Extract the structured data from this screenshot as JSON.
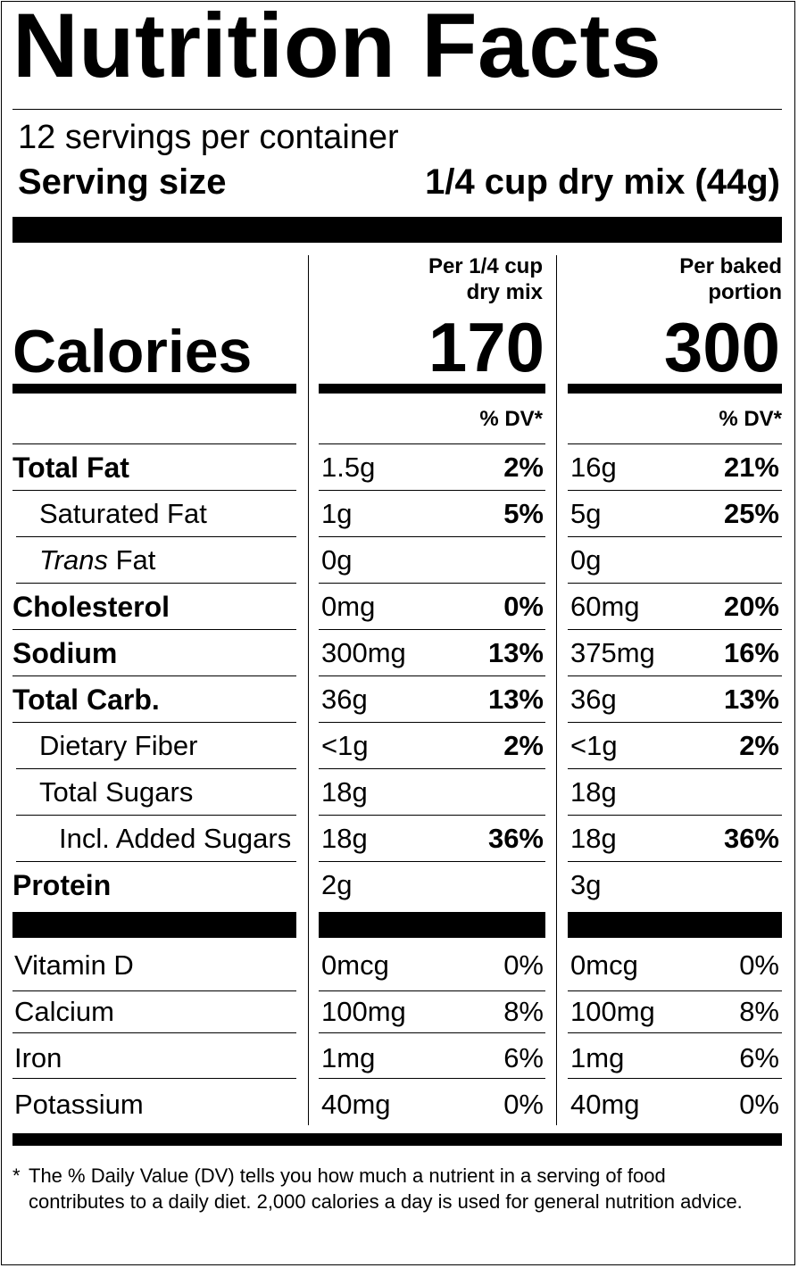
{
  "title": "Nutrition Facts",
  "servings_per_container": "12 servings per container",
  "serving_size_label": "Serving size",
  "serving_size_value": "1/4 cup dry mix (44g)",
  "columns": [
    {
      "header_line1": "Per 1/4 cup",
      "header_line2": "dry mix",
      "calories": "170",
      "dv_header": "% DV*"
    },
    {
      "header_line1": "Per baked",
      "header_line2": "portion",
      "calories": "300",
      "dv_header": "% DV*"
    }
  ],
  "calories_label": "Calories",
  "nutrients": [
    {
      "name": "Total Fat",
      "style": "bold",
      "col1_amount": "1.5g",
      "col1_dv": "2%",
      "col2_amount": "16g",
      "col2_dv": "21%"
    },
    {
      "name": "Saturated Fat",
      "style": "indent",
      "col1_amount": "1g",
      "col1_dv": "5%",
      "col2_amount": "5g",
      "col2_dv": "25%"
    },
    {
      "name_italic": "Trans",
      "name": " Fat",
      "style": "indent",
      "col1_amount": "0g",
      "col1_dv": "",
      "col2_amount": "0g",
      "col2_dv": ""
    },
    {
      "name": "Cholesterol",
      "style": "bold",
      "col1_amount": "0mg",
      "col1_dv": "0%",
      "col2_amount": "60mg",
      "col2_dv": "20%"
    },
    {
      "name": "Sodium",
      "style": "bold",
      "col1_amount": "300mg",
      "col1_dv": "13%",
      "col2_amount": "375mg",
      "col2_dv": "16%"
    },
    {
      "name": "Total Carb.",
      "style": "bold",
      "col1_amount": "36g",
      "col1_dv": "13%",
      "col2_amount": "36g",
      "col2_dv": "13%"
    },
    {
      "name": "Dietary Fiber",
      "style": "indent",
      "col1_amount": "<1g",
      "col1_dv": "2%",
      "col2_amount": "<1g",
      "col2_dv": "2%"
    },
    {
      "name": "Total Sugars",
      "style": "indent",
      "col1_amount": "18g",
      "col1_dv": "",
      "col2_amount": "18g",
      "col2_dv": ""
    },
    {
      "name": "Incl. Added Sugars",
      "style": "indent2",
      "col1_amount": "18g",
      "col1_dv": "36%",
      "col2_amount": "18g",
      "col2_dv": "36%"
    },
    {
      "name": "Protein",
      "style": "bold",
      "col1_amount": "2g",
      "col1_dv": "",
      "col2_amount": "3g",
      "col2_dv": ""
    }
  ],
  "vitamins": [
    {
      "name": "Vitamin D",
      "col1_amount": "0mcg",
      "col1_dv": "0%",
      "col2_amount": "0mcg",
      "col2_dv": "0%"
    },
    {
      "name": "Calcium",
      "col1_amount": "100mg",
      "col1_dv": "8%",
      "col2_amount": "100mg",
      "col2_dv": "8%"
    },
    {
      "name": "Iron",
      "col1_amount": "1mg",
      "col1_dv": "6%",
      "col2_amount": "1mg",
      "col2_dv": "6%"
    },
    {
      "name": "Potassium",
      "col1_amount": "40mg",
      "col1_dv": "0%",
      "col2_amount": "40mg",
      "col2_dv": "0%"
    }
  ],
  "footnote_star": "*",
  "footnote": "The % Daily Value (DV) tells you how much a nutrient in a serving of food contributes to a daily diet. 2,000 calories a day is used for general nutrition advice."
}
